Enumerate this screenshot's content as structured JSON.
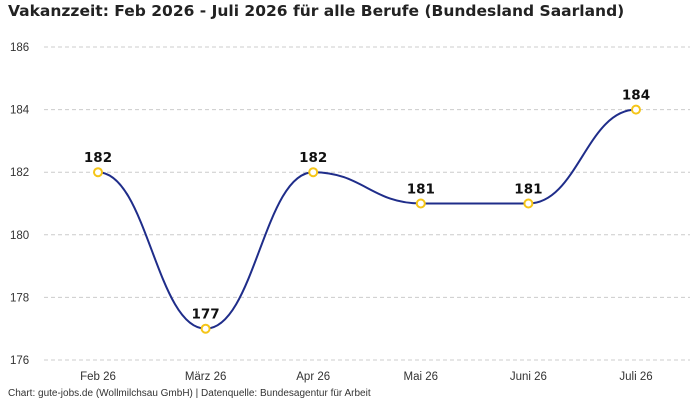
{
  "chart_data": {
    "type": "line",
    "title": "Vakanzzeit: Feb 2026 - Juli 2026 für alle Berufe (Bundesland Saarland)",
    "categories": [
      "Feb 26",
      "März 26",
      "Apr 26",
      "Mai 26",
      "Juni 26",
      "Juli 26"
    ],
    "values": [
      182,
      177,
      182,
      181,
      181,
      184
    ],
    "ylim": [
      176,
      186
    ],
    "yticks": [
      176,
      178,
      180,
      182,
      184,
      186
    ],
    "xlabel": "",
    "ylabel": "",
    "grid": true,
    "line_style": "smooth",
    "colors": {
      "line": "#1f2d8a",
      "marker": "#f5c518",
      "grid": "#cccccc"
    }
  },
  "source": "Chart: gute-jobs.de (Wollmilchsau GmbH) | Datenquelle: Bundesagentur für Arbeit"
}
